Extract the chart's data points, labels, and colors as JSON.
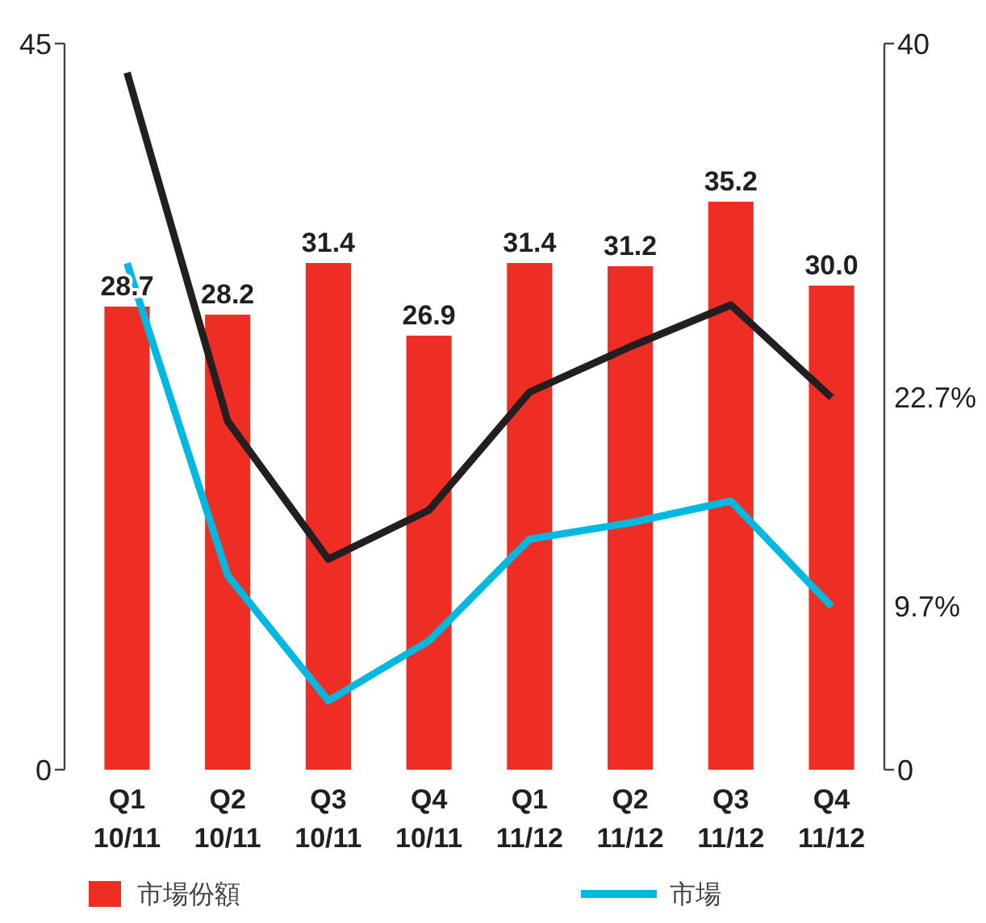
{
  "chart_data": {
    "type": "bar",
    "categories": [
      "Q1 10/11",
      "Q2 10/11",
      "Q3 10/11",
      "Q4 10/11",
      "Q1 11/12",
      "Q2 11/12",
      "Q3 11/12",
      "Q4 11/12"
    ],
    "series": [
      {
        "name": "市場份額",
        "color": "#ee2e24",
        "values": [
          28.7,
          28.2,
          31.4,
          26.9,
          31.4,
          31.2,
          35.2,
          30.0
        ],
        "value_labels": [
          "28.7",
          "28.2",
          "31.4",
          "26.9",
          "31.4",
          "31.2",
          "35.2",
          "30.0"
        ]
      },
      {
        "type": "line",
        "axis": "y2",
        "color": "#231f20",
        "values": [
          38.4,
          19.2,
          11.6,
          14.3,
          20.8,
          23.3,
          25.6,
          20.5
        ]
      },
      {
        "name": "市場",
        "type": "line",
        "axis": "y2",
        "color": "#00b8e0",
        "values": [
          27.9,
          10.7,
          3.8,
          7.1,
          12.7,
          13.6,
          14.8,
          9.0
        ]
      }
    ],
    "ylim": [
      0,
      45
    ],
    "yticks": [
      0,
      45
    ],
    "y2lim": [
      0,
      40
    ],
    "y2ticks": [
      0,
      40
    ],
    "annotations": [
      "22.7%",
      "9.7%"
    ],
    "legend": "bottom",
    "grid": false,
    "marker": "none",
    "line_style": "solid"
  }
}
